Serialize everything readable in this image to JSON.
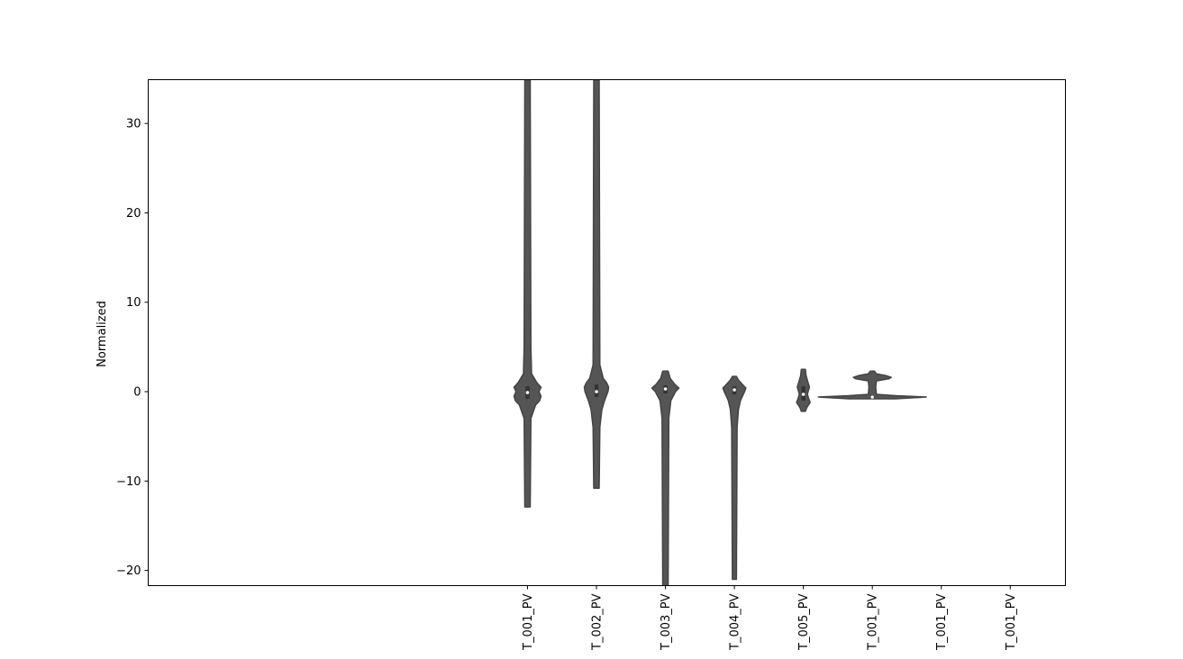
{
  "chart_data": {
    "type": "violin",
    "title": "",
    "xlabel": "",
    "ylabel": "Normalized",
    "ylim": [
      -21.7,
      34.9
    ],
    "yticks": [
      -20,
      -10,
      0,
      10,
      20,
      30
    ],
    "ytick_labels": [
      "−20",
      "−10",
      "0",
      "10",
      "20",
      "30"
    ],
    "x_tick_positions": [
      5,
      6,
      7,
      8,
      9,
      10,
      11,
      12
    ],
    "xlim": [
      -0.5,
      12.8
    ],
    "categories": [
      "T_001_PV",
      "T_002_PV",
      "T_003_PV",
      "T_004_PV",
      "T_005_PV",
      "T_001_PV",
      "T_001_PV",
      "T_001_PV"
    ],
    "violins": [
      {
        "min": -12.9,
        "max": 34.9,
        "median": -0.1,
        "q1": -0.8,
        "q3": 0.6,
        "profile": [
          [
            -12.9,
            0.04
          ],
          [
            -3,
            0.05
          ],
          [
            -1.5,
            0.12
          ],
          [
            -1.0,
            0.18
          ],
          [
            -0.5,
            0.2
          ],
          [
            0,
            0.17
          ],
          [
            0.5,
            0.2
          ],
          [
            1.0,
            0.14
          ],
          [
            2.0,
            0.06
          ],
          [
            5,
            0.05
          ],
          [
            34.9,
            0.04
          ]
        ]
      },
      {
        "min": -10.8,
        "max": 34.9,
        "median": 0.0,
        "q1": -0.6,
        "q3": 0.8,
        "profile": [
          [
            -10.8,
            0.04
          ],
          [
            -4,
            0.05
          ],
          [
            -2.0,
            0.08
          ],
          [
            -1.0,
            0.12
          ],
          [
            0,
            0.17
          ],
          [
            0.5,
            0.18
          ],
          [
            1.0,
            0.15
          ],
          [
            1.5,
            0.1
          ],
          [
            3,
            0.05
          ],
          [
            34.9,
            0.04
          ]
        ]
      },
      {
        "min": -21.7,
        "max": 2.3,
        "median": 0.3,
        "q1": -0.2,
        "q3": 0.7,
        "profile": [
          [
            -21.7,
            0.04
          ],
          [
            -3,
            0.05
          ],
          [
            -1.0,
            0.08
          ],
          [
            0,
            0.15
          ],
          [
            0.4,
            0.2
          ],
          [
            0.8,
            0.14
          ],
          [
            1.5,
            0.07
          ],
          [
            2.3,
            0.04
          ]
        ]
      },
      {
        "min": -21.0,
        "max": 1.7,
        "median": 0.2,
        "q1": -0.3,
        "q3": 0.6,
        "profile": [
          [
            -21,
            0.03
          ],
          [
            -4,
            0.04
          ],
          [
            -2.0,
            0.06
          ],
          [
            -1.0,
            0.09
          ],
          [
            0,
            0.15
          ],
          [
            0.4,
            0.17
          ],
          [
            0.8,
            0.12
          ],
          [
            1.3,
            0.06
          ],
          [
            1.7,
            0.03
          ]
        ]
      },
      {
        "min": -2.2,
        "max": 2.5,
        "median": -0.3,
        "q1": -1.0,
        "q3": 0.6,
        "profile": [
          [
            -2.2,
            0.03
          ],
          [
            -1.8,
            0.05
          ],
          [
            -1.2,
            0.1
          ],
          [
            -0.8,
            0.08
          ],
          [
            -0.3,
            0.06
          ],
          [
            0,
            0.07
          ],
          [
            0.5,
            0.09
          ],
          [
            1.0,
            0.07
          ],
          [
            1.8,
            0.04
          ],
          [
            2.5,
            0.03
          ]
        ]
      },
      {
        "min": -0.8,
        "max": 2.3,
        "median": -0.6,
        "q1": -0.7,
        "q3": -0.4,
        "profile": [
          [
            -0.8,
            0.35
          ],
          [
            -0.6,
            0.8
          ],
          [
            -0.45,
            0.35
          ],
          [
            -0.3,
            0.06
          ],
          [
            0.5,
            0.05
          ],
          [
            1.2,
            0.06
          ],
          [
            1.45,
            0.25
          ],
          [
            1.6,
            0.28
          ],
          [
            1.8,
            0.2
          ],
          [
            2.0,
            0.06
          ],
          [
            2.3,
            0.03
          ]
        ]
      }
    ],
    "colors": {
      "violin_edge": "#444444",
      "violin_fill": "#555555",
      "median_marker": "#ffffff",
      "accent": "#dd8452"
    },
    "grid": false,
    "legend": "none"
  }
}
